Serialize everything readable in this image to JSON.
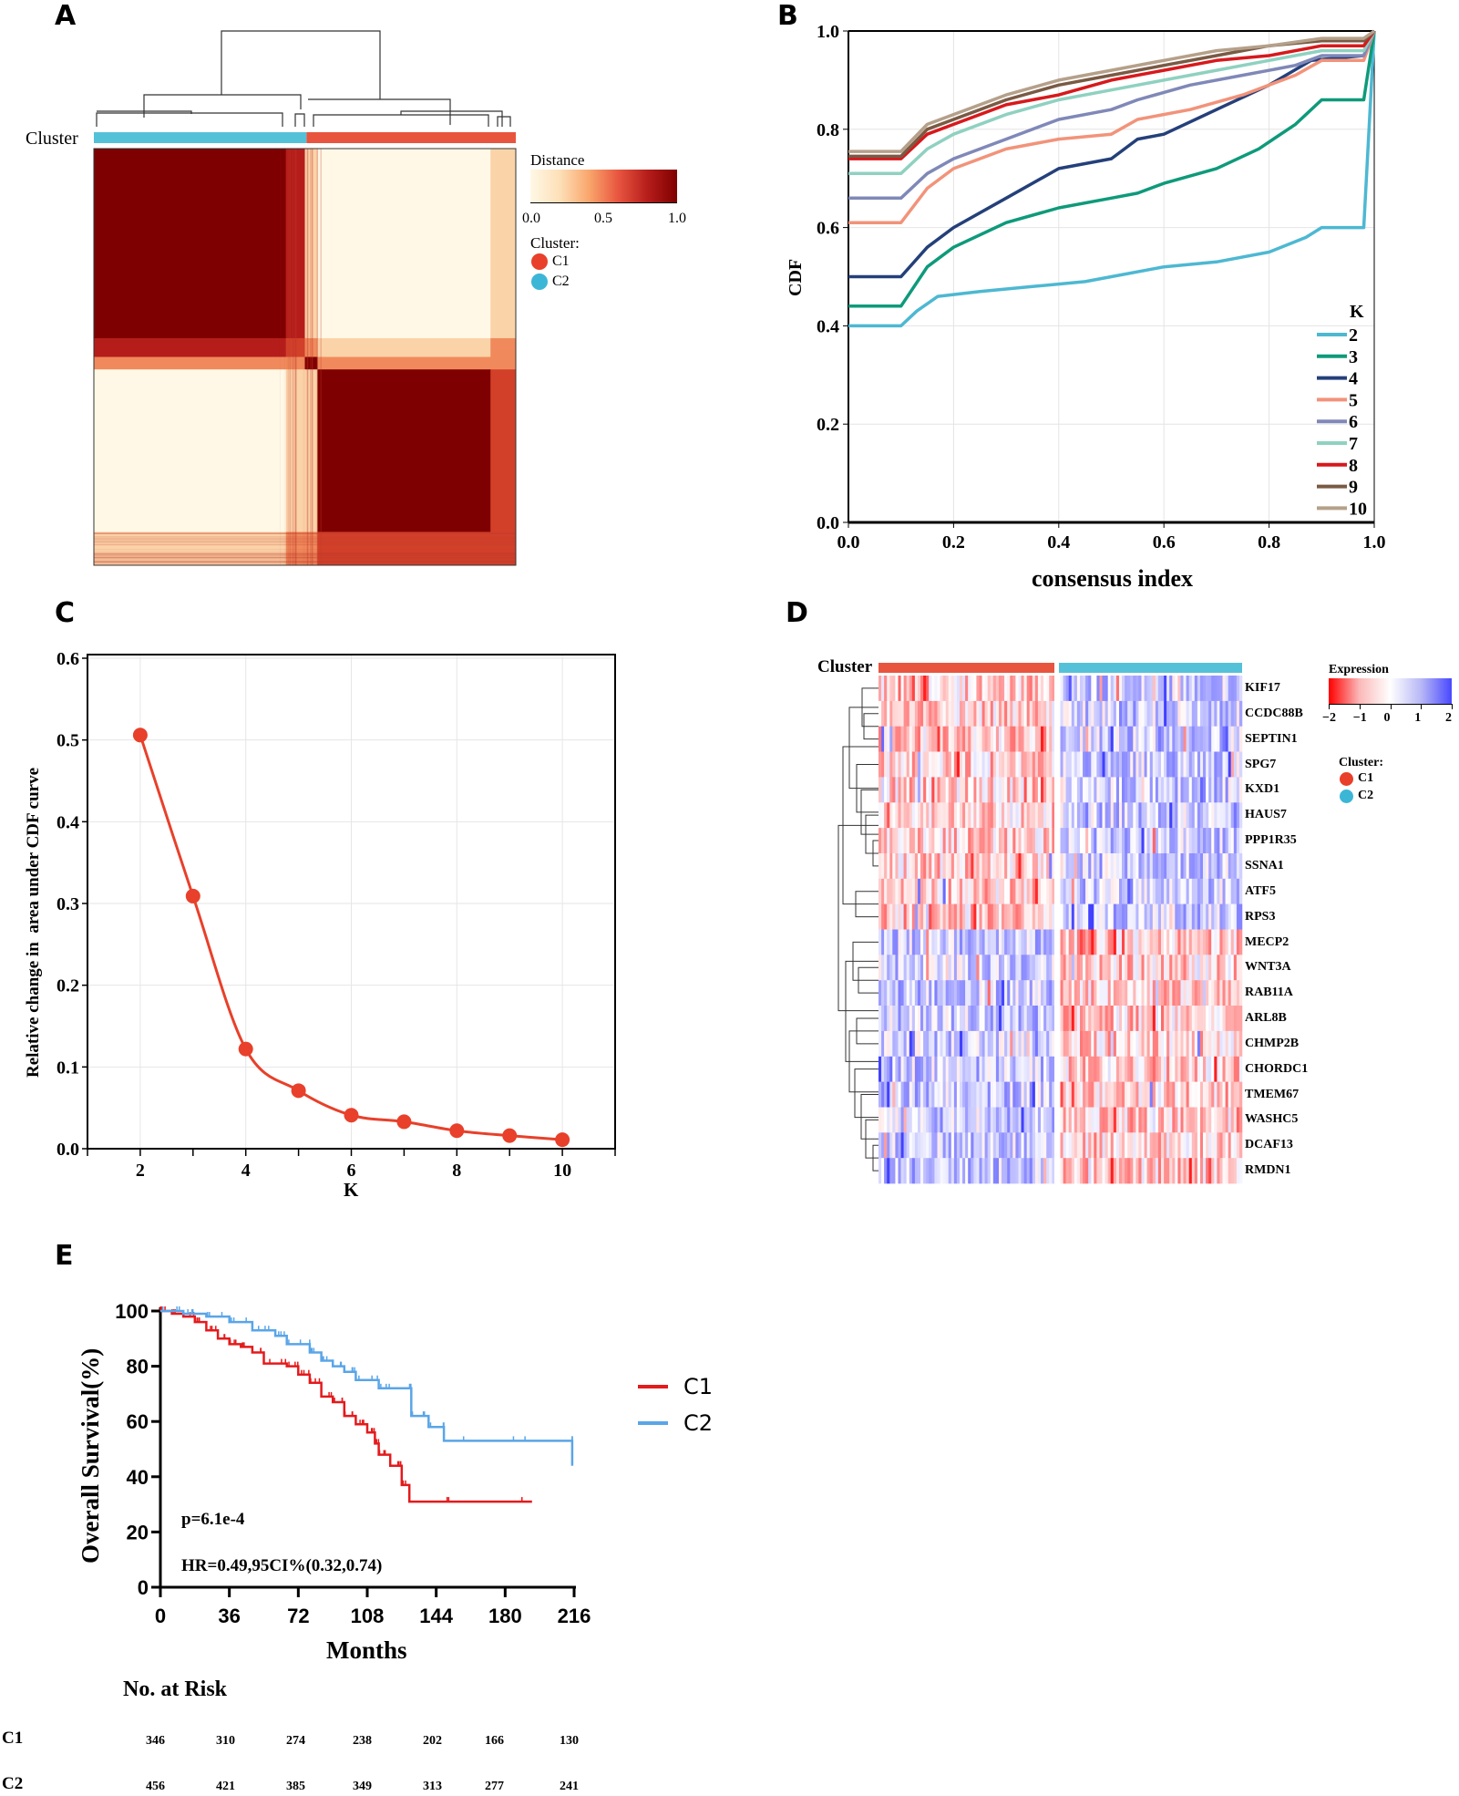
{
  "panels": {
    "A": "A",
    "B": "B",
    "C": "C",
    "D": "D",
    "E": "E"
  },
  "colors": {
    "C1": "#e8553f",
    "C2": "#55c1d8",
    "dark_red": "#7f0000",
    "cream": "#fff8e6"
  },
  "chart_data": [
    {
      "panel": "A",
      "type": "heatmap",
      "cluster_label": "Cluster",
      "cluster_order": [
        "C2",
        "C1"
      ],
      "legend_title": "Distance",
      "legend_ticks": [
        "0.0",
        "0.5",
        "1.0"
      ],
      "legend_range": [
        0,
        1
      ],
      "cluster_legend_title": "Cluster:",
      "cluster_legend": [
        {
          "name": "C1",
          "color": "#e8553f"
        },
        {
          "name": "C2",
          "color": "#55c1d8"
        }
      ]
    },
    {
      "panel": "B",
      "type": "line",
      "xlabel": "consensus index",
      "ylabel": "CDF",
      "xlim": [
        0,
        1
      ],
      "ylim": [
        0,
        1
      ],
      "xticks": [
        "0.0",
        "0.2",
        "0.4",
        "0.6",
        "0.8",
        "1.0"
      ],
      "yticks": [
        "0.0",
        "0.2",
        "0.4",
        "0.6",
        "0.8",
        "1.0"
      ],
      "grid": true,
      "legend_title": "K",
      "legend_position": "bottom-right",
      "series": [
        {
          "name": "2",
          "color": "#4db8d2",
          "points": [
            [
              0,
              0.4
            ],
            [
              0.1,
              0.4
            ],
            [
              0.13,
              0.43
            ],
            [
              0.17,
              0.46
            ],
            [
              0.25,
              0.47
            ],
            [
              0.35,
              0.48
            ],
            [
              0.45,
              0.49
            ],
            [
              0.5,
              0.5
            ],
            [
              0.6,
              0.52
            ],
            [
              0.7,
              0.53
            ],
            [
              0.8,
              0.55
            ],
            [
              0.87,
              0.58
            ],
            [
              0.9,
              0.6
            ],
            [
              0.98,
              0.6
            ],
            [
              1.0,
              1.0
            ]
          ]
        },
        {
          "name": "3",
          "color": "#0e9a7a",
          "points": [
            [
              0,
              0.44
            ],
            [
              0.1,
              0.44
            ],
            [
              0.15,
              0.52
            ],
            [
              0.2,
              0.56
            ],
            [
              0.3,
              0.61
            ],
            [
              0.4,
              0.64
            ],
            [
              0.5,
              0.66
            ],
            [
              0.55,
              0.67
            ],
            [
              0.6,
              0.69
            ],
            [
              0.7,
              0.72
            ],
            [
              0.78,
              0.76
            ],
            [
              0.85,
              0.81
            ],
            [
              0.9,
              0.86
            ],
            [
              0.98,
              0.86
            ],
            [
              1.0,
              1.0
            ]
          ]
        },
        {
          "name": "4",
          "color": "#24407a",
          "points": [
            [
              0,
              0.5
            ],
            [
              0.1,
              0.5
            ],
            [
              0.15,
              0.56
            ],
            [
              0.2,
              0.6
            ],
            [
              0.3,
              0.66
            ],
            [
              0.4,
              0.72
            ],
            [
              0.5,
              0.74
            ],
            [
              0.55,
              0.78
            ],
            [
              0.6,
              0.79
            ],
            [
              0.7,
              0.84
            ],
            [
              0.8,
              0.89
            ],
            [
              0.88,
              0.94
            ],
            [
              0.98,
              0.95
            ],
            [
              1.0,
              1.0
            ]
          ]
        },
        {
          "name": "5",
          "color": "#f2937a",
          "points": [
            [
              0,
              0.61
            ],
            [
              0.1,
              0.61
            ],
            [
              0.15,
              0.68
            ],
            [
              0.2,
              0.72
            ],
            [
              0.3,
              0.76
            ],
            [
              0.4,
              0.78
            ],
            [
              0.5,
              0.79
            ],
            [
              0.55,
              0.82
            ],
            [
              0.65,
              0.84
            ],
            [
              0.75,
              0.87
            ],
            [
              0.85,
              0.91
            ],
            [
              0.9,
              0.94
            ],
            [
              0.98,
              0.94
            ],
            [
              1.0,
              1.0
            ]
          ]
        },
        {
          "name": "6",
          "color": "#8088b8",
          "points": [
            [
              0,
              0.66
            ],
            [
              0.1,
              0.66
            ],
            [
              0.15,
              0.71
            ],
            [
              0.2,
              0.74
            ],
            [
              0.3,
              0.78
            ],
            [
              0.4,
              0.82
            ],
            [
              0.5,
              0.84
            ],
            [
              0.55,
              0.86
            ],
            [
              0.65,
              0.89
            ],
            [
              0.75,
              0.91
            ],
            [
              0.85,
              0.93
            ],
            [
              0.9,
              0.95
            ],
            [
              0.98,
              0.95
            ],
            [
              1.0,
              1.0
            ]
          ]
        },
        {
          "name": "7",
          "color": "#8fd1c0",
          "points": [
            [
              0,
              0.71
            ],
            [
              0.1,
              0.71
            ],
            [
              0.15,
              0.76
            ],
            [
              0.2,
              0.79
            ],
            [
              0.3,
              0.83
            ],
            [
              0.4,
              0.86
            ],
            [
              0.5,
              0.88
            ],
            [
              0.6,
              0.9
            ],
            [
              0.7,
              0.92
            ],
            [
              0.8,
              0.94
            ],
            [
              0.9,
              0.96
            ],
            [
              0.98,
              0.96
            ],
            [
              1.0,
              1.0
            ]
          ]
        },
        {
          "name": "8",
          "color": "#d7191c",
          "points": [
            [
              0,
              0.74
            ],
            [
              0.1,
              0.74
            ],
            [
              0.15,
              0.79
            ],
            [
              0.2,
              0.81
            ],
            [
              0.3,
              0.85
            ],
            [
              0.4,
              0.87
            ],
            [
              0.5,
              0.9
            ],
            [
              0.6,
              0.92
            ],
            [
              0.7,
              0.94
            ],
            [
              0.8,
              0.95
            ],
            [
              0.9,
              0.97
            ],
            [
              0.98,
              0.97
            ],
            [
              1.0,
              1.0
            ]
          ]
        },
        {
          "name": "9",
          "color": "#7a5a44",
          "points": [
            [
              0,
              0.745
            ],
            [
              0.1,
              0.745
            ],
            [
              0.15,
              0.8
            ],
            [
              0.2,
              0.82
            ],
            [
              0.3,
              0.86
            ],
            [
              0.4,
              0.89
            ],
            [
              0.5,
              0.91
            ],
            [
              0.6,
              0.93
            ],
            [
              0.7,
              0.95
            ],
            [
              0.8,
              0.97
            ],
            [
              0.9,
              0.98
            ],
            [
              0.98,
              0.98
            ],
            [
              1.0,
              1.0
            ]
          ]
        },
        {
          "name": "10",
          "color": "#b5a08a",
          "points": [
            [
              0,
              0.755
            ],
            [
              0.1,
              0.755
            ],
            [
              0.15,
              0.81
            ],
            [
              0.2,
              0.83
            ],
            [
              0.3,
              0.87
            ],
            [
              0.4,
              0.9
            ],
            [
              0.5,
              0.92
            ],
            [
              0.6,
              0.94
            ],
            [
              0.7,
              0.96
            ],
            [
              0.8,
              0.97
            ],
            [
              0.9,
              0.985
            ],
            [
              0.98,
              0.985
            ],
            [
              1.0,
              1.0
            ]
          ]
        }
      ]
    },
    {
      "panel": "C",
      "type": "line",
      "xlabel": "K",
      "ylabel": "Relative change in  area under CDF curve",
      "xlim": [
        1,
        11
      ],
      "ylim": [
        0,
        0.6
      ],
      "xticks": [
        "2",
        "4",
        "6",
        "8",
        "10"
      ],
      "yticks": [
        "0.0",
        "0.1",
        "0.2",
        "0.3",
        "0.4",
        "0.5",
        "0.6"
      ],
      "grid": true,
      "color": "#e8402a",
      "x": [
        2,
        3,
        4,
        5,
        6,
        7,
        8,
        9,
        10
      ],
      "y": [
        0.506,
        0.309,
        0.122,
        0.071,
        0.041,
        0.033,
        0.022,
        0.016,
        0.011
      ]
    },
    {
      "panel": "D",
      "type": "heatmap",
      "cluster_label": "Cluster",
      "cluster_order": [
        "C1",
        "C2"
      ],
      "rows": [
        "KIF17",
        "CCDC88B",
        "SEPTIN1",
        "SPG7",
        "KXD1",
        "HAUS7",
        "PPP1R35",
        "SSNA1",
        "ATF5",
        "RPS3",
        "MECP2",
        "WNT3A",
        "RAB11A",
        "ARL8B",
        "CHMP2B",
        "CHORDC1",
        "TMEM67",
        "WASHC5",
        "DCAF13",
        "RMDN1"
      ],
      "legend_title": "Expression",
      "legend_ticks": [
        "−2",
        "−1",
        "0",
        "1",
        "2"
      ],
      "legend_range": [
        -2,
        2
      ],
      "cluster_legend_title": "Cluster:",
      "cluster_legend": [
        {
          "name": "C1",
          "color": "#e8553f"
        },
        {
          "name": "C2",
          "color": "#55c1d8"
        }
      ]
    },
    {
      "panel": "E",
      "type": "line",
      "xlabel": "Months",
      "ylabel": "Overall Survival(%)",
      "xlim": [
        0,
        216
      ],
      "ylim": [
        0,
        100
      ],
      "xticks": [
        "0",
        "36",
        "72",
        "108",
        "144",
        "180",
        "216"
      ],
      "yticks": [
        "0",
        "20",
        "40",
        "60",
        "80",
        "100"
      ],
      "legend_position": "right",
      "annotations": [
        "p=6.1e-4",
        "HR=0.49,95CI%(0.32,0.74)"
      ],
      "series": [
        {
          "name": "C1",
          "color": "#e41a1c",
          "points": [
            [
              0,
              100
            ],
            [
              6,
              99
            ],
            [
              12,
              98
            ],
            [
              18,
              96
            ],
            [
              24,
              93
            ],
            [
              30,
              90
            ],
            [
              36,
              88
            ],
            [
              42,
              87
            ],
            [
              48,
              85
            ],
            [
              54,
              81
            ],
            [
              66,
              80
            ],
            [
              72,
              77
            ],
            [
              78,
              74
            ],
            [
              84,
              69
            ],
            [
              90,
              67
            ],
            [
              96,
              62
            ],
            [
              102,
              59
            ],
            [
              108,
              56
            ],
            [
              112,
              52
            ],
            [
              114,
              48
            ],
            [
              120,
              44
            ],
            [
              126,
              37
            ],
            [
              130,
              31
            ],
            [
              194,
              31
            ]
          ]
        },
        {
          "name": "C2",
          "color": "#5aa5e8",
          "points": [
            [
              0,
              100
            ],
            [
              12,
              99
            ],
            [
              24,
              98
            ],
            [
              36,
              96
            ],
            [
              48,
              93
            ],
            [
              60,
              91
            ],
            [
              66,
              88
            ],
            [
              78,
              85
            ],
            [
              84,
              82
            ],
            [
              90,
              80
            ],
            [
              96,
              78
            ],
            [
              102,
              75
            ],
            [
              114,
              72
            ],
            [
              130,
              72
            ],
            [
              131,
              62
            ],
            [
              140,
              58
            ],
            [
              148,
              53
            ],
            [
              215,
              53
            ],
            [
              215,
              44
            ]
          ]
        }
      ],
      "risk_table": {
        "title": "No. at Risk",
        "rows": [
          {
            "name": "C1",
            "values": [
              "346",
              "310",
              "274",
              "238",
              "202",
              "166",
              "130"
            ]
          },
          {
            "name": "C2",
            "values": [
              "456",
              "421",
              "385",
              "349",
              "313",
              "277",
              "241"
            ]
          }
        ]
      }
    }
  ]
}
